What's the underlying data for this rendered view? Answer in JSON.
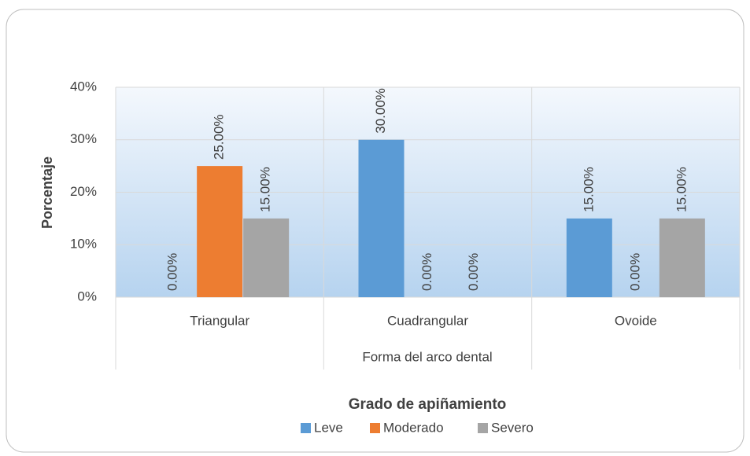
{
  "chart_data": {
    "type": "bar",
    "categories": [
      "Triangular",
      "Cuadrangular",
      "Ovoide"
    ],
    "series": [
      {
        "name": "Leve",
        "color": "#5b9bd5",
        "values": [
          0,
          30,
          15
        ],
        "value_labels": [
          "0.00%",
          "30.00%",
          "15.00%"
        ]
      },
      {
        "name": "Moderado",
        "color": "#ed7d31",
        "values": [
          25,
          0,
          0
        ],
        "value_labels": [
          "25.00%",
          "0.00%",
          "0.00%"
        ]
      },
      {
        "name": "Severo",
        "color": "#a5a5a5",
        "values": [
          15,
          0,
          15
        ],
        "value_labels": [
          "15.00%",
          "0.00%",
          "15.00%"
        ]
      }
    ],
    "ylim": [
      0,
      40
    ],
    "yticks": [
      {
        "value": 0,
        "label": "0%"
      },
      {
        "value": 10,
        "label": "10%"
      },
      {
        "value": 20,
        "label": "20%"
      },
      {
        "value": 30,
        "label": "30%"
      },
      {
        "value": 40,
        "label": "40%"
      }
    ],
    "y_label": "Porcentaje",
    "x_label": "Forma del arco dental",
    "legend_title": "Grado de apiñamiento",
    "legend": "bottom",
    "grid": true
  }
}
